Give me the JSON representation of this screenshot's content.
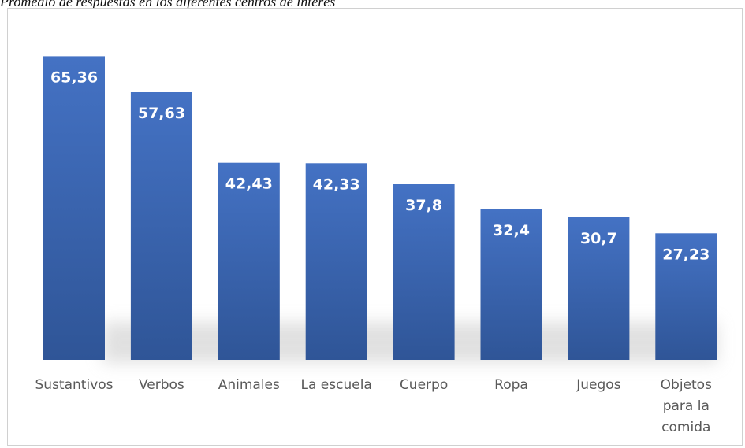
{
  "caption": "Promedio de respuestas en los diferentes centros de interés",
  "chart_data": {
    "type": "bar",
    "title": "",
    "xlabel": "",
    "ylabel": "",
    "categories": [
      "Sustantivos",
      "Verbos",
      "Animales",
      "La escuela",
      "Cuerpo",
      "Ropa",
      "Juegos",
      "Objetos para la comida"
    ],
    "values": [
      65.36,
      57.63,
      42.43,
      42.33,
      37.8,
      32.4,
      30.7,
      27.23
    ],
    "value_labels": [
      "65,36",
      "57,63",
      "42,43",
      "42,33",
      "37,8",
      "32,4",
      "30,7",
      "27,23"
    ],
    "category_label_lines": [
      [
        "Sustantivos"
      ],
      [
        "Verbos"
      ],
      [
        "Animales"
      ],
      [
        "La escuela"
      ],
      [
        "Cuerpo"
      ],
      [
        "Ropa"
      ],
      [
        "Juegos"
      ],
      [
        "Objetos",
        "para la",
        "comida"
      ]
    ],
    "ylim": [
      0,
      70
    ],
    "grid": false,
    "legend": "none",
    "bar_color_top": "#4472c4",
    "bar_color_bottom": "#2f5597",
    "value_label_color": "#ffffff",
    "category_label_color": "#595959"
  }
}
